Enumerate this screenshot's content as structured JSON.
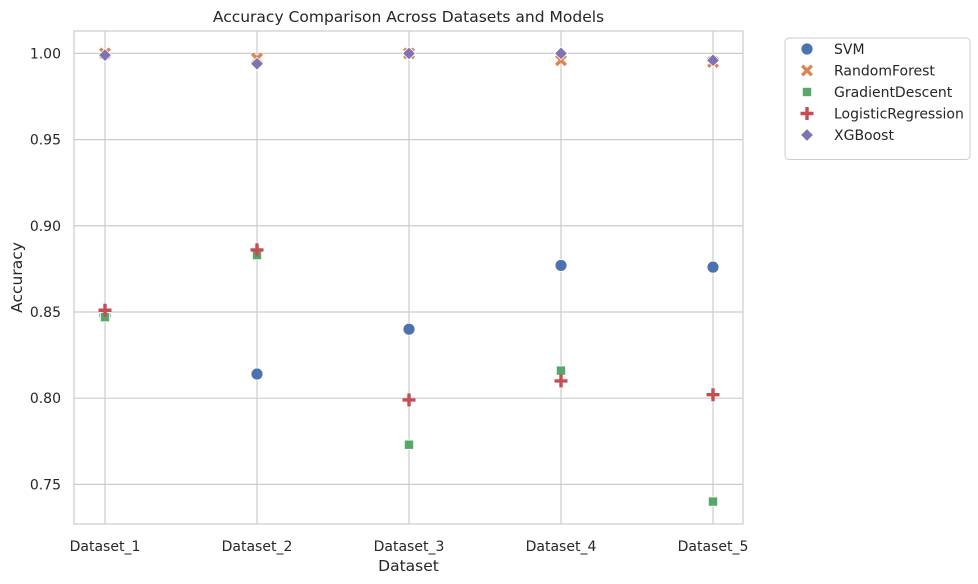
{
  "chart_data": {
    "type": "scatter",
    "title": "Accuracy Comparison Across Datasets and Models",
    "xlabel": "Dataset",
    "ylabel": "Accuracy",
    "categories": [
      "Dataset_1",
      "Dataset_2",
      "Dataset_3",
      "Dataset_4",
      "Dataset_5"
    ],
    "ylim": [
      0.727,
      1.013
    ],
    "yticks": [
      0.75,
      0.8,
      0.85,
      0.9,
      0.95,
      1.0
    ],
    "ytick_labels": [
      "0.75",
      "0.80",
      "0.85",
      "0.90",
      "0.95",
      "1.00"
    ],
    "grid": true,
    "legend_position": "outside-top-right",
    "series": [
      {
        "name": "SVM",
        "marker": "circle",
        "color": "#4c72b0",
        "values": [
          0.848,
          0.814,
          0.84,
          0.877,
          0.876
        ]
      },
      {
        "name": "RandomForest",
        "marker": "x",
        "color": "#dd8452",
        "values": [
          1.0,
          0.997,
          1.0,
          0.996,
          0.995
        ]
      },
      {
        "name": "GradientDescent",
        "marker": "square",
        "color": "#55a868",
        "values": [
          0.847,
          0.883,
          0.773,
          0.816,
          0.74
        ]
      },
      {
        "name": "LogisticRegression",
        "marker": "plus",
        "color": "#c44e52",
        "values": [
          0.851,
          0.886,
          0.799,
          0.81,
          0.802
        ]
      },
      {
        "name": "XGBoost",
        "marker": "diamond",
        "color": "#8172b3",
        "values": [
          0.999,
          0.994,
          1.0,
          1.0,
          0.996
        ]
      }
    ]
  }
}
